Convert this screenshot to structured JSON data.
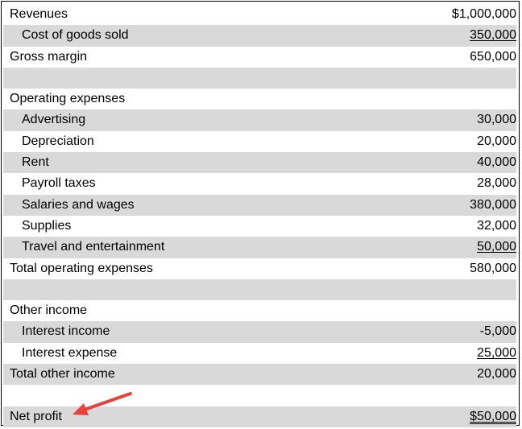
{
  "statement": {
    "rows": [
      {
        "label": "Revenues",
        "value": "$1,000,000"
      },
      {
        "label": "Cost of goods sold",
        "value": "350,000"
      },
      {
        "label": "Gross margin",
        "value": "650,000"
      },
      {
        "label": "",
        "value": ""
      },
      {
        "label": "Operating expenses",
        "value": ""
      },
      {
        "label": "Advertising",
        "value": "30,000"
      },
      {
        "label": "Depreciation",
        "value": "20,000"
      },
      {
        "label": "Rent",
        "value": "40,000"
      },
      {
        "label": "Payroll taxes",
        "value": "28,000"
      },
      {
        "label": "Salaries and wages",
        "value": "380,000"
      },
      {
        "label": "Supplies",
        "value": "32,000"
      },
      {
        "label": "Travel and entertainment",
        "value": "50,000"
      },
      {
        "label": "Total operating expenses",
        "value": "580,000"
      },
      {
        "label": "",
        "value": ""
      },
      {
        "label": "Other income",
        "value": ""
      },
      {
        "label": "Interest income",
        "value": "-5,000"
      },
      {
        "label": "Interest expense",
        "value": "25,000"
      },
      {
        "label": "Total other income",
        "value": "20,000"
      },
      {
        "label": "",
        "value": ""
      },
      {
        "label": "Net profit",
        "value": "$50,000"
      }
    ]
  },
  "colors": {
    "row_shade": "#d9d9d9",
    "arrow": "#e8423a"
  },
  "annotation": {
    "icon": "arrow-icon"
  }
}
